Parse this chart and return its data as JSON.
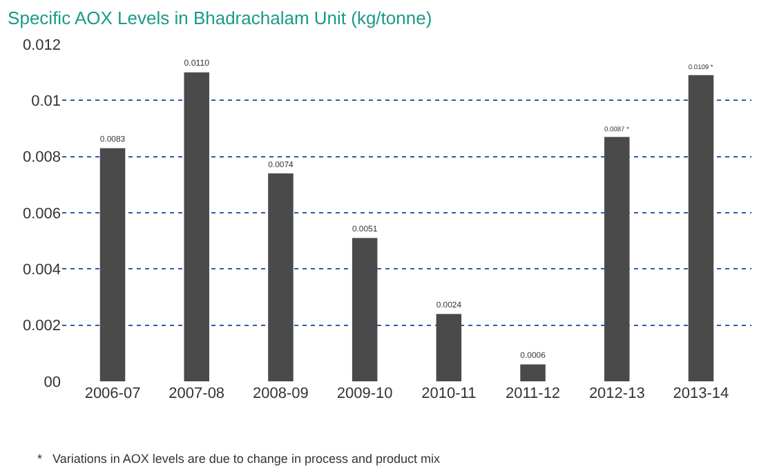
{
  "chart_data": {
    "type": "bar",
    "title": "Specific AOX Levels in Bhadrachalam Unit (kg/tonne)",
    "categories": [
      "2006-07",
      "2007-08",
      "2008-09",
      "2009-10",
      "2010-11",
      "2011-12",
      "2012-13",
      "2013-14"
    ],
    "values": [
      0.0083,
      0.011,
      0.0074,
      0.0051,
      0.0024,
      0.0006,
      0.0087,
      0.0109
    ],
    "value_labels": [
      "0.0083",
      "0.0110",
      "0.0074",
      "0.0051",
      "0.0024",
      "0.0006",
      "0.0087 *",
      "0.0109 *"
    ],
    "color": "#4a4a4a",
    "ylim": [
      0,
      0.012
    ],
    "yticks": [
      {
        "value": 0,
        "label": "00"
      },
      0.002,
      0.004,
      0.006,
      0.008,
      0.01,
      0.012
    ],
    "grid": "y",
    "legend": false,
    "annotations": [
      "*   Variations in AOX levels are due to change in process and product mix"
    ]
  }
}
